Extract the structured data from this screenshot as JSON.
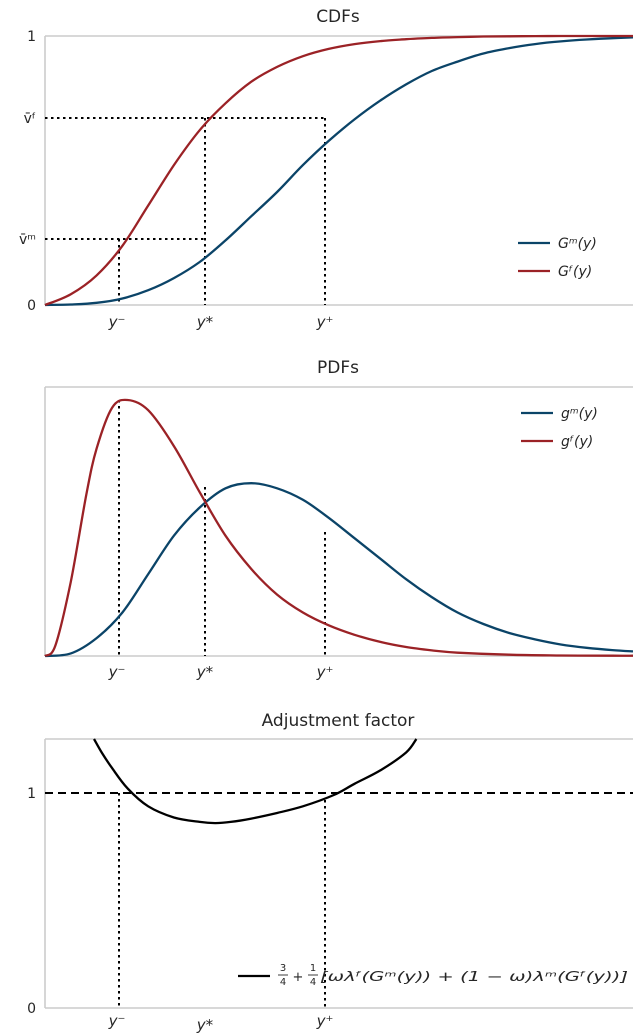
{
  "colors": {
    "male": "#0b4468",
    "female": "#9b2226",
    "factor": "#000000",
    "axis": "#cccccc"
  },
  "chart_data": [
    {
      "type": "line",
      "title": "CDFs",
      "x_markers": [
        {
          "label": "y⁻",
          "x": 0.16
        },
        {
          "label": "y*",
          "x": 0.33
        },
        {
          "label": "y⁺",
          "x": 0.56
        }
      ],
      "y_ticks": [
        {
          "label": "0",
          "y": 0
        },
        {
          "label": "v̄ᵐ",
          "y": 0.24
        },
        {
          "label": "v̄ᶠ",
          "y": 0.71
        },
        {
          "label": "1",
          "y": 1
        }
      ],
      "xlim": [
        0,
        1.14
      ],
      "ylim": [
        0,
        1
      ],
      "series": [
        {
          "name": "Gᵐ(y)",
          "color": "#0b4468",
          "x": [
            0,
            0.05,
            0.1,
            0.15,
            0.2,
            0.25,
            0.3,
            0.35,
            0.4,
            0.45,
            0.5,
            0.55,
            0.6,
            0.65,
            0.7,
            0.75,
            0.8,
            0.85,
            0.9,
            0.95,
            1.0,
            1.05,
            1.1,
            1.14
          ],
          "y": [
            0,
            0.002,
            0.008,
            0.024,
            0.055,
            0.1,
            0.16,
            0.24,
            0.33,
            0.42,
            0.52,
            0.61,
            0.69,
            0.76,
            0.82,
            0.87,
            0.905,
            0.935,
            0.955,
            0.97,
            0.98,
            0.987,
            0.992,
            0.995
          ]
        },
        {
          "name": "Gᶠ(y)",
          "color": "#9b2226",
          "x": [
            0,
            0.05,
            0.1,
            0.15,
            0.2,
            0.25,
            0.3,
            0.35,
            0.4,
            0.45,
            0.5,
            0.55,
            0.6,
            0.65,
            0.7,
            0.75,
            0.8,
            0.85,
            0.9,
            0.95,
            1.0,
            1.05,
            1.1,
            1.14
          ],
          "y": [
            0,
            0.04,
            0.11,
            0.22,
            0.37,
            0.52,
            0.65,
            0.75,
            0.83,
            0.885,
            0.925,
            0.952,
            0.97,
            0.981,
            0.988,
            0.993,
            0.996,
            0.998,
            0.999,
            0.9995,
            1,
            1,
            1,
            1
          ]
        }
      ]
    },
    {
      "type": "line",
      "title": "PDFs",
      "x_markers": [
        {
          "label": "y⁻",
          "x": 0.16
        },
        {
          "label": "y*",
          "x": 0.33
        },
        {
          "label": "y⁺",
          "x": 0.56
        }
      ],
      "xlim": [
        0,
        1.14
      ],
      "ylim": [
        0,
        1
      ],
      "series": [
        {
          "name": "gᵐ(y)",
          "color": "#0b4468",
          "x": [
            0,
            0.05,
            0.1,
            0.15,
            0.2,
            0.25,
            0.3,
            0.35,
            0.4,
            0.45,
            0.5,
            0.55,
            0.6,
            0.65,
            0.7,
            0.75,
            0.8,
            0.85,
            0.9,
            0.95,
            1.0,
            1.05,
            1.1,
            1.14
          ],
          "y": [
            0,
            0.01,
            0.07,
            0.17,
            0.32,
            0.47,
            0.58,
            0.655,
            0.675,
            0.655,
            0.61,
            0.54,
            0.46,
            0.38,
            0.3,
            0.23,
            0.17,
            0.125,
            0.09,
            0.065,
            0.045,
            0.032,
            0.023,
            0.018
          ]
        },
        {
          "name": "gᶠ(y)",
          "color": "#9b2226",
          "x": [
            0,
            0.02,
            0.05,
            0.08,
            0.1,
            0.13,
            0.16,
            0.2,
            0.25,
            0.3,
            0.35,
            0.4,
            0.45,
            0.5,
            0.55,
            0.6,
            0.65,
            0.7,
            0.75,
            0.8,
            0.9,
            1.0,
            1.1,
            1.14
          ],
          "y": [
            0,
            0.04,
            0.29,
            0.63,
            0.81,
            0.97,
            1.0,
            0.96,
            0.82,
            0.64,
            0.47,
            0.34,
            0.24,
            0.17,
            0.12,
            0.083,
            0.055,
            0.035,
            0.022,
            0.013,
            0.005,
            0.002,
            0.001,
            0.001
          ]
        }
      ]
    },
    {
      "type": "line",
      "title": "Adjustment factor",
      "x_markers": [
        {
          "label": "y⁻",
          "x": 0.16
        },
        {
          "label": "y*",
          "x": 0.33
        },
        {
          "label": "y⁺",
          "x": 0.56
        }
      ],
      "y_ticks": [
        {
          "label": "0",
          "y": 0
        },
        {
          "label": "1",
          "y": 1
        }
      ],
      "reference_line": {
        "y": 1,
        "style": "dashed"
      },
      "xlim": [
        0,
        1.14
      ],
      "ylim": [
        0,
        1.2
      ],
      "series": [
        {
          "name": "factor",
          "color": "#000000",
          "x": [
            0.095,
            0.11,
            0.13,
            0.16,
            0.2,
            0.25,
            0.3,
            0.33,
            0.36,
            0.4,
            0.45,
            0.5,
            0.56,
            0.6,
            0.65,
            0.7,
            0.72
          ],
          "y": [
            1.2,
            1.14,
            1.07,
            0.98,
            0.9,
            0.85,
            0.83,
            0.825,
            0.83,
            0.845,
            0.87,
            0.9,
            0.95,
            1.0,
            1.06,
            1.14,
            1.2
          ]
        }
      ],
      "legend_formula": {
        "frac1": {
          "num": "3",
          "den": "4"
        },
        "plus": "+",
        "frac2": {
          "num": "1",
          "den": "4"
        },
        "body": "[ωλᶠ(Gᵐ(y)) + (1 − ω)λᵐ(Gᶠ(y))]"
      }
    }
  ]
}
